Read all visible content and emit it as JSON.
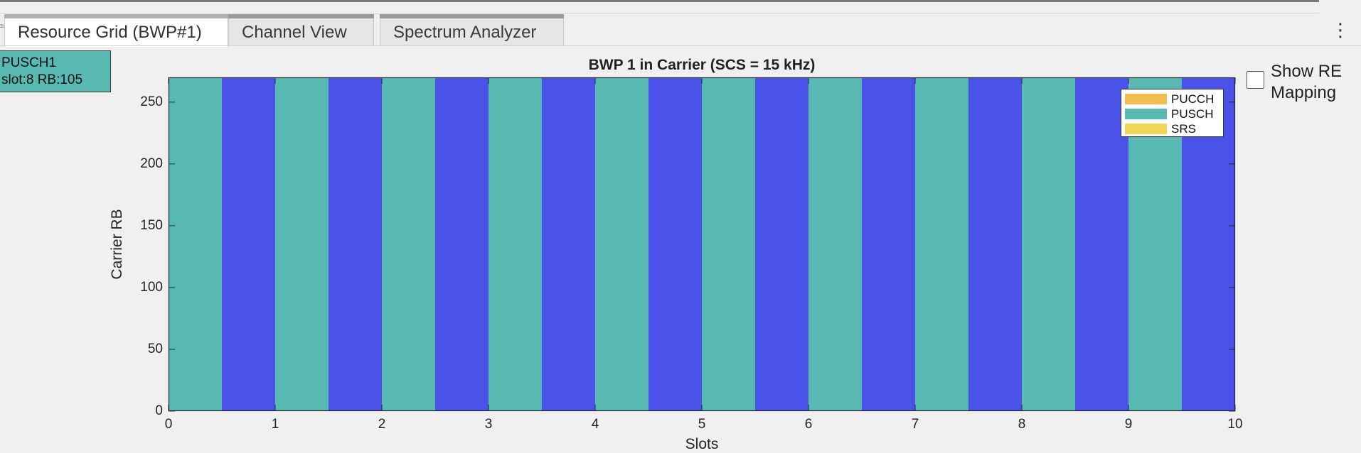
{
  "tabs": [
    {
      "label": "Resource Grid (BWP#1)",
      "active": true
    },
    {
      "label": "Channel View",
      "active": false
    },
    {
      "label": "Spectrum Analyzer",
      "active": false
    }
  ],
  "datatip": {
    "line1": "PUSCH1",
    "line2": "slot:8 RB:105"
  },
  "show_re_mapping": {
    "label": "Show RE Mapping",
    "checked": false
  },
  "colors": {
    "pucch": "#f2bc4f",
    "pusch": "#58b9b3",
    "srs": "#f4d657",
    "empty": "#4a52ea"
  },
  "chart_data": {
    "type": "heatmap",
    "title": "BWP 1 in Carrier (SCS = 15 kHz)",
    "xlabel": "Slots",
    "ylabel": "Carrier RB",
    "xlim": [
      0,
      10
    ],
    "ylim": [
      0,
      270
    ],
    "xticks": [
      0,
      1,
      2,
      3,
      4,
      5,
      6,
      7,
      8,
      9,
      10
    ],
    "yticks": [
      0,
      50,
      100,
      150,
      200,
      250
    ],
    "legend_position": "top-right",
    "legend": [
      "PUCCH",
      "PUSCH",
      "SRS"
    ],
    "blocks": [
      {
        "channel": "PUSCH",
        "x_start": 0.0,
        "x_end": 0.5,
        "rb_start": 0,
        "rb_end": 270
      },
      {
        "channel": "none",
        "x_start": 0.5,
        "x_end": 1.0,
        "rb_start": 0,
        "rb_end": 270
      },
      {
        "channel": "PUSCH",
        "x_start": 1.0,
        "x_end": 1.5,
        "rb_start": 0,
        "rb_end": 270
      },
      {
        "channel": "none",
        "x_start": 1.5,
        "x_end": 2.0,
        "rb_start": 0,
        "rb_end": 270
      },
      {
        "channel": "PUSCH",
        "x_start": 2.0,
        "x_end": 2.5,
        "rb_start": 0,
        "rb_end": 270
      },
      {
        "channel": "none",
        "x_start": 2.5,
        "x_end": 3.0,
        "rb_start": 0,
        "rb_end": 270
      },
      {
        "channel": "PUSCH",
        "x_start": 3.0,
        "x_end": 3.5,
        "rb_start": 0,
        "rb_end": 270
      },
      {
        "channel": "none",
        "x_start": 3.5,
        "x_end": 4.0,
        "rb_start": 0,
        "rb_end": 270
      },
      {
        "channel": "PUSCH",
        "x_start": 4.0,
        "x_end": 4.5,
        "rb_start": 0,
        "rb_end": 270
      },
      {
        "channel": "none",
        "x_start": 4.5,
        "x_end": 5.0,
        "rb_start": 0,
        "rb_end": 270
      },
      {
        "channel": "PUSCH",
        "x_start": 5.0,
        "x_end": 5.5,
        "rb_start": 0,
        "rb_end": 270
      },
      {
        "channel": "none",
        "x_start": 5.5,
        "x_end": 6.0,
        "rb_start": 0,
        "rb_end": 270
      },
      {
        "channel": "PUSCH",
        "x_start": 6.0,
        "x_end": 6.5,
        "rb_start": 0,
        "rb_end": 270
      },
      {
        "channel": "none",
        "x_start": 6.5,
        "x_end": 7.0,
        "rb_start": 0,
        "rb_end": 270
      },
      {
        "channel": "PUSCH",
        "x_start": 7.0,
        "x_end": 7.5,
        "rb_start": 0,
        "rb_end": 270
      },
      {
        "channel": "none",
        "x_start": 7.5,
        "x_end": 8.0,
        "rb_start": 0,
        "rb_end": 270
      },
      {
        "channel": "PUSCH",
        "x_start": 8.0,
        "x_end": 8.5,
        "rb_start": 0,
        "rb_end": 270
      },
      {
        "channel": "none",
        "x_start": 8.5,
        "x_end": 9.0,
        "rb_start": 0,
        "rb_end": 270
      },
      {
        "channel": "PUSCH",
        "x_start": 9.0,
        "x_end": 9.5,
        "rb_start": 0,
        "rb_end": 270
      },
      {
        "channel": "none",
        "x_start": 9.5,
        "x_end": 10.0,
        "rb_start": 0,
        "rb_end": 270
      }
    ]
  }
}
